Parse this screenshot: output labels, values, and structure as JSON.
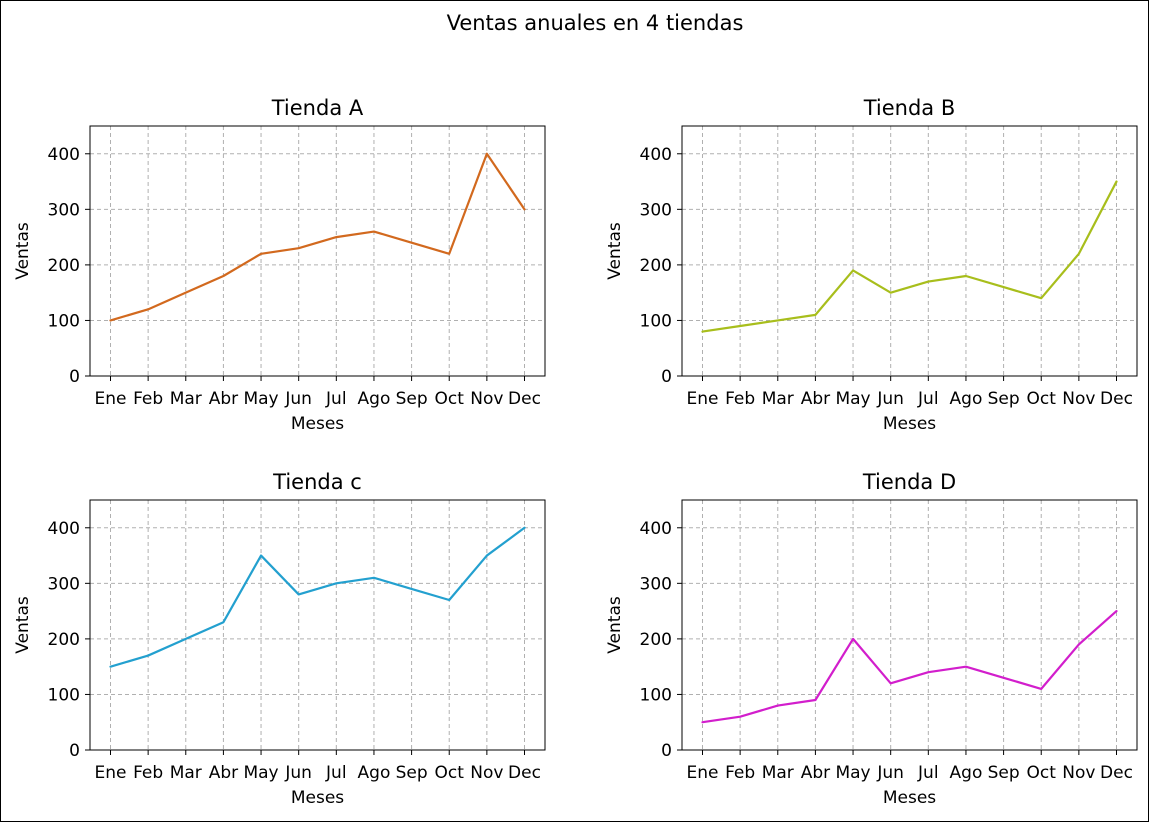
{
  "figure": {
    "title": "Ventas anuales en 4 tiendas"
  },
  "chart_data": [
    {
      "type": "line",
      "title": "Tienda A",
      "xlabel": "Meses",
      "ylabel": "Ventas",
      "categories": [
        "Ene",
        "Feb",
        "Mar",
        "Abr",
        "May",
        "Jun",
        "Jul",
        "Ago",
        "Sep",
        "Oct",
        "Nov",
        "Dec"
      ],
      "series": [
        {
          "color": "#d2691e",
          "values": [
            100,
            120,
            150,
            180,
            220,
            230,
            250,
            260,
            240,
            220,
            400,
            300
          ]
        }
      ],
      "ylim": [
        0,
        450
      ],
      "yticks": [
        0,
        100,
        200,
        300,
        400
      ],
      "grid": true,
      "grid_style": "dashed"
    },
    {
      "type": "line",
      "title": "Tienda B",
      "xlabel": "Meses",
      "ylabel": "Ventas",
      "categories": [
        "Ene",
        "Feb",
        "Mar",
        "Abr",
        "May",
        "Jun",
        "Jul",
        "Ago",
        "Sep",
        "Oct",
        "Nov",
        "Dec"
      ],
      "series": [
        {
          "color": "#a8be1c",
          "values": [
            80,
            90,
            100,
            110,
            190,
            150,
            170,
            180,
            160,
            140,
            220,
            350
          ]
        }
      ],
      "ylim": [
        0,
        450
      ],
      "yticks": [
        0,
        100,
        200,
        300,
        400
      ],
      "grid": true,
      "grid_style": "dashed"
    },
    {
      "type": "line",
      "title": "Tienda c",
      "xlabel": "Meses",
      "ylabel": "Ventas",
      "categories": [
        "Ene",
        "Feb",
        "Mar",
        "Abr",
        "May",
        "Jun",
        "Jul",
        "Ago",
        "Sep",
        "Oct",
        "Nov",
        "Dec"
      ],
      "series": [
        {
          "color": "#23a0cf",
          "values": [
            150,
            170,
            200,
            230,
            350,
            280,
            300,
            310,
            290,
            270,
            350,
            400
          ]
        }
      ],
      "ylim": [
        0,
        450
      ],
      "yticks": [
        0,
        100,
        200,
        300,
        400
      ],
      "grid": true,
      "grid_style": "dashed"
    },
    {
      "type": "line",
      "title": "Tienda D",
      "xlabel": "Meses",
      "ylabel": "Ventas",
      "categories": [
        "Ene",
        "Feb",
        "Mar",
        "Abr",
        "May",
        "Jun",
        "Jul",
        "Ago",
        "Sep",
        "Oct",
        "Nov",
        "Dec"
      ],
      "series": [
        {
          "color": "#d21ecc",
          "values": [
            50,
            60,
            80,
            90,
            200,
            120,
            140,
            150,
            130,
            110,
            190,
            250
          ]
        }
      ],
      "ylim": [
        0,
        450
      ],
      "yticks": [
        0,
        100,
        200,
        300,
        400
      ],
      "grid": true,
      "grid_style": "dashed"
    }
  ]
}
